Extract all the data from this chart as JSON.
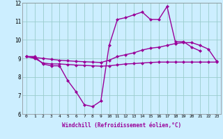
{
  "xlabel": "Windchill (Refroidissement éolien,°C)",
  "x": [
    0,
    1,
    2,
    3,
    4,
    5,
    6,
    7,
    8,
    9,
    10,
    11,
    12,
    13,
    14,
    15,
    16,
    17,
    18,
    19,
    20,
    21,
    22,
    23
  ],
  "line1": [
    9.1,
    9.1,
    8.7,
    8.6,
    8.6,
    7.8,
    7.2,
    6.5,
    6.4,
    6.7,
    9.7,
    11.1,
    11.2,
    11.35,
    11.5,
    11.1,
    11.1,
    11.8,
    9.9,
    9.9,
    9.6,
    9.4,
    null,
    null
  ],
  "line2": [
    9.1,
    9.05,
    9.0,
    8.95,
    8.9,
    8.87,
    8.84,
    8.82,
    8.8,
    8.78,
    8.9,
    9.1,
    9.2,
    9.3,
    9.45,
    9.55,
    9.6,
    9.7,
    9.8,
    9.85,
    9.85,
    9.7,
    9.5,
    8.85
  ],
  "line3": [
    9.1,
    9.0,
    8.75,
    8.7,
    8.7,
    8.67,
    8.64,
    8.62,
    8.6,
    8.58,
    8.6,
    8.65,
    8.7,
    8.72,
    8.75,
    8.78,
    8.8,
    8.8,
    8.8,
    8.8,
    8.8,
    8.8,
    8.8,
    8.8
  ],
  "ylim": [
    6,
    12
  ],
  "xlim": [
    -0.5,
    23.5
  ],
  "yticks": [
    6,
    7,
    8,
    9,
    10,
    11,
    12
  ],
  "xticks": [
    0,
    1,
    2,
    3,
    4,
    5,
    6,
    7,
    8,
    9,
    10,
    11,
    12,
    13,
    14,
    15,
    16,
    17,
    18,
    19,
    20,
    21,
    22,
    23
  ],
  "line_color": "#990099",
  "bg_color": "#cceeff",
  "grid_color": "#99cccc",
  "markersize": 2.5,
  "linewidth": 1.0
}
